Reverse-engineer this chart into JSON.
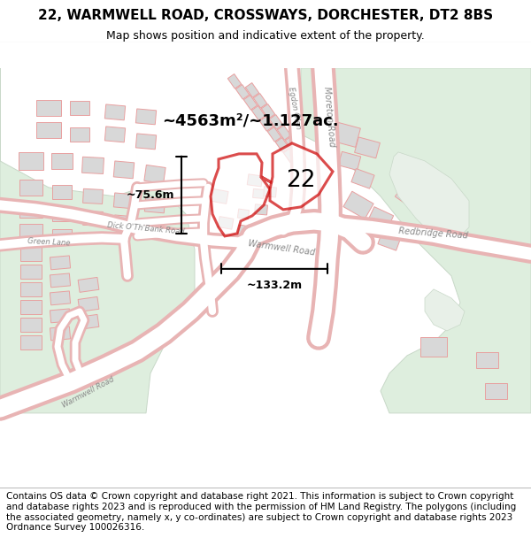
{
  "title": "22, WARMWELL ROAD, CROSSWAYS, DORCHESTER, DT2 8BS",
  "subtitle": "Map shows position and indicative extent of the property.",
  "footer": "Contains OS data © Crown copyright and database right 2021. This information is subject to Crown copyright and database rights 2023 and is reproduced with the permission of HM Land Registry. The polygons (including the associated geometry, namely x, y co-ordinates) are subject to Crown copyright and database rights 2023 Ordnance Survey 100026316.",
  "map_bg": "#f7f7f5",
  "road_color": "#ffffff",
  "road_edge": "#e8b4b4",
  "building_fill": "#d8d8d8",
  "building_edge": "#e8a0a0",
  "green_fill": "#deeede",
  "green_edge": "#c8d8c8",
  "highlight_stroke": "#cc0000",
  "highlight_lw": 2.2,
  "area_label": "~4563m²/~1.127ac.",
  "width_label": "~133.2m",
  "height_label": "~75.6m",
  "title_fontsize": 11,
  "subtitle_fontsize": 9,
  "footer_fontsize": 7.5
}
